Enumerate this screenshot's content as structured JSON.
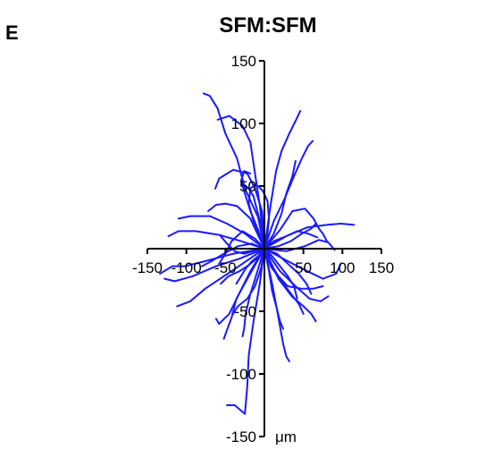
{
  "panel_label": "E",
  "chart_data": {
    "type": "line",
    "title": "SFM:SFM",
    "unit_label": "μm",
    "xlim": [
      -150,
      150
    ],
    "ylim": [
      -150,
      150
    ],
    "x_ticks": [
      -150,
      -100,
      -50,
      50,
      100,
      150
    ],
    "y_ticks": [
      150,
      100,
      50,
      -50,
      -100,
      -150
    ],
    "x_tick_labels": [
      "-150",
      "-100",
      "-50",
      "50",
      "100",
      "150"
    ],
    "y_tick_labels": [
      "150",
      "100",
      "50",
      "-50",
      "-100",
      "-150"
    ],
    "grid": false,
    "legend": "none",
    "line_color": "#1a1aff",
    "series": [
      {
        "points": [
          [
            0,
            0
          ],
          [
            -8,
            25
          ],
          [
            -25,
            48
          ],
          [
            -35,
            72
          ],
          [
            -50,
            92
          ],
          [
            -60,
            112
          ],
          [
            -70,
            122
          ],
          [
            -78,
            124
          ]
        ]
      },
      {
        "points": [
          [
            0,
            0
          ],
          [
            -6,
            35
          ],
          [
            -12,
            60
          ],
          [
            -18,
            85
          ],
          [
            -28,
            98
          ],
          [
            -45,
            106
          ],
          [
            -60,
            103
          ]
        ]
      },
      {
        "points": [
          [
            0,
            0
          ],
          [
            -3,
            30
          ],
          [
            -12,
            48
          ],
          [
            -22,
            60
          ],
          [
            -40,
            63
          ],
          [
            -58,
            56
          ],
          [
            -63,
            48
          ]
        ]
      },
      {
        "points": [
          [
            0,
            0
          ],
          [
            8,
            35
          ],
          [
            15,
            62
          ],
          [
            22,
            78
          ],
          [
            32,
            92
          ],
          [
            40,
            102
          ],
          [
            46,
            110
          ]
        ]
      },
      {
        "points": [
          [
            0,
            0
          ],
          [
            12,
            22
          ],
          [
            26,
            40
          ],
          [
            38,
            58
          ],
          [
            48,
            72
          ],
          [
            56,
            82
          ],
          [
            62,
            86
          ]
        ]
      },
      {
        "points": [
          [
            0,
            0
          ],
          [
            20,
            15
          ],
          [
            36,
            30
          ],
          [
            52,
            32
          ],
          [
            63,
            24
          ],
          [
            70,
            16
          ],
          [
            75,
            12
          ],
          [
            80,
            6
          ]
        ]
      },
      {
        "points": [
          [
            0,
            0
          ],
          [
            28,
            10
          ],
          [
            55,
            17
          ],
          [
            80,
            19
          ],
          [
            98,
            20
          ],
          [
            115,
            19
          ]
        ]
      },
      {
        "points": [
          [
            0,
            0
          ],
          [
            28,
            -2
          ],
          [
            52,
            2
          ],
          [
            70,
            7
          ],
          [
            82,
            5
          ],
          [
            90,
            -1
          ]
        ]
      },
      {
        "points": [
          [
            0,
            0
          ],
          [
            30,
            -10
          ],
          [
            55,
            -18
          ],
          [
            75,
            -24
          ],
          [
            92,
            -20
          ],
          [
            98,
            -12
          ]
        ]
      },
      {
        "points": [
          [
            0,
            0
          ],
          [
            20,
            -18
          ],
          [
            40,
            -30
          ],
          [
            58,
            -40
          ],
          [
            72,
            -42
          ],
          [
            82,
            -38
          ]
        ]
      },
      {
        "points": [
          [
            0,
            0
          ],
          [
            18,
            -24
          ],
          [
            35,
            -38
          ],
          [
            50,
            -46
          ],
          [
            60,
            -52
          ],
          [
            66,
            -58
          ]
        ]
      },
      {
        "points": [
          [
            0,
            0
          ],
          [
            10,
            -28
          ],
          [
            18,
            -55
          ],
          [
            24,
            -76
          ],
          [
            28,
            -86
          ],
          [
            32,
            -90
          ]
        ]
      },
      {
        "points": [
          [
            0,
            0
          ],
          [
            -6,
            -28
          ],
          [
            -14,
            -58
          ],
          [
            -20,
            -85
          ],
          [
            -22,
            -110
          ],
          [
            -25,
            -132
          ],
          [
            -38,
            -125
          ],
          [
            -48,
            -125
          ]
        ]
      },
      {
        "points": [
          [
            0,
            0
          ],
          [
            -18,
            -18
          ],
          [
            -34,
            -38
          ],
          [
            -45,
            -52
          ],
          [
            -58,
            -60
          ],
          [
            -62,
            -56
          ]
        ]
      },
      {
        "points": [
          [
            0,
            0
          ],
          [
            -20,
            -22
          ],
          [
            -36,
            -40
          ],
          [
            -42,
            -55
          ],
          [
            -48,
            -65
          ],
          [
            -52,
            -72
          ]
        ]
      },
      {
        "points": [
          [
            0,
            0
          ],
          [
            -28,
            -12
          ],
          [
            -52,
            -22
          ],
          [
            -76,
            -32
          ],
          [
            -95,
            -42
          ],
          [
            -112,
            -46
          ]
        ]
      },
      {
        "points": [
          [
            0,
            0
          ],
          [
            -32,
            -8
          ],
          [
            -62,
            -14
          ],
          [
            -92,
            -22
          ],
          [
            -115,
            -26
          ],
          [
            -128,
            -24
          ]
        ]
      },
      {
        "points": [
          [
            0,
            0
          ],
          [
            -40,
            -4
          ],
          [
            -76,
            -10
          ],
          [
            -102,
            -14
          ],
          [
            -118,
            -14
          ],
          [
            -134,
            -20
          ]
        ]
      },
      {
        "points": [
          [
            0,
            0
          ],
          [
            -30,
            6
          ],
          [
            -58,
            11
          ],
          [
            -88,
            14
          ],
          [
            -110,
            14
          ],
          [
            -123,
            10
          ]
        ]
      },
      {
        "points": [
          [
            0,
            0
          ],
          [
            -25,
            12
          ],
          [
            -48,
            20
          ],
          [
            -70,
            26
          ],
          [
            -95,
            26
          ],
          [
            -110,
            24
          ]
        ]
      },
      {
        "points": [
          [
            0,
            0
          ],
          [
            -18,
            24
          ],
          [
            -35,
            34
          ],
          [
            -50,
            36
          ],
          [
            -62,
            35
          ],
          [
            -72,
            30
          ]
        ]
      },
      {
        "points": [
          [
            0,
            0
          ],
          [
            -12,
            8
          ],
          [
            -28,
            14
          ],
          [
            -42,
            6
          ],
          [
            -50,
            -4
          ],
          [
            -58,
            -12
          ]
        ]
      },
      {
        "points": [
          [
            0,
            0
          ],
          [
            12,
            12
          ],
          [
            22,
            28
          ],
          [
            28,
            44
          ],
          [
            36,
            58
          ],
          [
            40,
            70
          ]
        ]
      },
      {
        "points": [
          [
            0,
            0
          ],
          [
            -8,
            15
          ],
          [
            -18,
            30
          ],
          [
            -26,
            46
          ],
          [
            -30,
            54
          ],
          [
            -26,
            62
          ],
          [
            -18,
            60
          ]
        ]
      },
      {
        "points": [
          [
            0,
            0
          ],
          [
            6,
            -10
          ],
          [
            18,
            -22
          ],
          [
            30,
            -30
          ],
          [
            48,
            -32
          ],
          [
            62,
            -32
          ],
          [
            75,
            -30
          ]
        ]
      },
      {
        "points": [
          [
            0,
            0
          ],
          [
            -10,
            -8
          ],
          [
            -22,
            -14
          ],
          [
            -32,
            -18
          ],
          [
            -46,
            -22
          ],
          [
            -56,
            -28
          ]
        ]
      },
      {
        "points": [
          [
            0,
            0
          ],
          [
            -4,
            -15
          ],
          [
            -12,
            -30
          ],
          [
            -22,
            -40
          ],
          [
            -34,
            -46
          ],
          [
            -40,
            -52
          ]
        ]
      },
      {
        "points": [
          [
            0,
            0
          ],
          [
            8,
            -14
          ],
          [
            22,
            -26
          ],
          [
            34,
            -36
          ],
          [
            44,
            -44
          ],
          [
            50,
            -52
          ]
        ]
      },
      {
        "points": [
          [
            0,
            0
          ],
          [
            12,
            6
          ],
          [
            28,
            10
          ],
          [
            42,
            14
          ],
          [
            56,
            12
          ],
          [
            68,
            9
          ]
        ]
      },
      {
        "points": [
          [
            0,
            0
          ],
          [
            -6,
            10
          ],
          [
            -14,
            22
          ],
          [
            -20,
            36
          ],
          [
            -18,
            48
          ],
          [
            -10,
            52
          ]
        ]
      },
      {
        "points": [
          [
            0,
            0
          ],
          [
            4,
            12
          ],
          [
            6,
            24
          ],
          [
            4,
            38
          ],
          [
            -2,
            46
          ],
          [
            -8,
            50
          ]
        ]
      },
      {
        "points": [
          [
            0,
            0
          ],
          [
            16,
            -4
          ],
          [
            30,
            -12
          ],
          [
            44,
            -20
          ],
          [
            54,
            -28
          ],
          [
            60,
            -36
          ]
        ]
      },
      {
        "points": [
          [
            0,
            0
          ],
          [
            -14,
            -2
          ],
          [
            -26,
            -4
          ],
          [
            -38,
            -2
          ],
          [
            -48,
            4
          ],
          [
            -56,
            10
          ]
        ]
      },
      {
        "points": [
          [
            0,
            0
          ],
          [
            -10,
            -20
          ],
          [
            -18,
            -36
          ],
          [
            -24,
            -52
          ],
          [
            -26,
            -64
          ],
          [
            -28,
            -70
          ]
        ]
      },
      {
        "points": [
          [
            0,
            0
          ],
          [
            6,
            -18
          ],
          [
            10,
            -34
          ],
          [
            16,
            -48
          ],
          [
            20,
            -58
          ],
          [
            24,
            -64
          ]
        ]
      },
      {
        "points": [
          [
            0,
            0
          ],
          [
            -16,
            4
          ],
          [
            -34,
            2
          ],
          [
            -52,
            -4
          ],
          [
            -68,
            -10
          ],
          [
            -80,
            -14
          ]
        ]
      },
      {
        "points": [
          [
            0,
            0
          ],
          [
            18,
            2
          ],
          [
            34,
            6
          ],
          [
            48,
            12
          ],
          [
            60,
            16
          ],
          [
            66,
            20
          ]
        ]
      },
      {
        "points": [
          [
            0,
            0
          ],
          [
            -4,
            18
          ],
          [
            -10,
            32
          ],
          [
            -14,
            42
          ],
          [
            -20,
            48
          ],
          [
            -28,
            52
          ]
        ]
      },
      {
        "points": [
          [
            0,
            0
          ],
          [
            10,
            -6
          ],
          [
            20,
            -14
          ],
          [
            30,
            -22
          ],
          [
            38,
            -30
          ],
          [
            42,
            -40
          ]
        ]
      },
      {
        "points": [
          [
            0,
            0
          ],
          [
            -8,
            -6
          ],
          [
            -16,
            -10
          ],
          [
            -24,
            -16
          ],
          [
            -30,
            -22
          ],
          [
            -36,
            -28
          ]
        ]
      }
    ]
  }
}
